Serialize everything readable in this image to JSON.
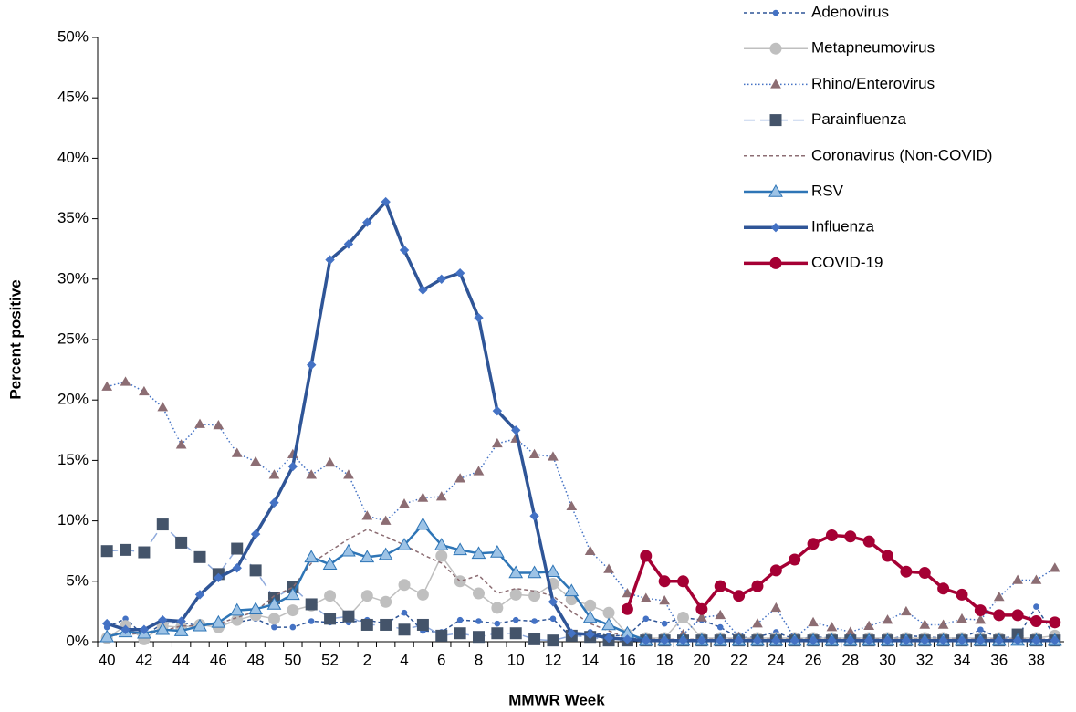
{
  "chart_data": {
    "type": "line",
    "x_label": "MMWR Week",
    "y_label": "Percent positive",
    "categories": [
      "40",
      null,
      "42",
      null,
      "44",
      null,
      "46",
      null,
      "48",
      null,
      "50",
      null,
      "52",
      null,
      "2",
      null,
      "4",
      null,
      "6",
      null,
      "8",
      null,
      "10",
      null,
      "12",
      null,
      "14",
      null,
      "16",
      null,
      "18",
      null,
      "20",
      null,
      "22",
      null,
      "24",
      null,
      "26",
      null,
      "28",
      null,
      "30",
      null,
      "32",
      null,
      "34",
      null,
      "36",
      null,
      "38",
      null
    ],
    "ylim": [
      0,
      50
    ],
    "yticks": [
      {
        "value": 0,
        "label": "0%"
      },
      {
        "value": 5,
        "label": "5%"
      },
      {
        "value": 10,
        "label": "10%"
      },
      {
        "value": 15,
        "label": "15%"
      },
      {
        "value": 20,
        "label": "20%"
      },
      {
        "value": 25,
        "label": "25%"
      },
      {
        "value": 30,
        "label": "30%"
      },
      {
        "value": 35,
        "label": "35%"
      },
      {
        "value": 40,
        "label": "40%"
      },
      {
        "value": 45,
        "label": "45%"
      },
      {
        "value": 50,
        "label": "50%"
      }
    ],
    "legend": "top-right",
    "series": [
      {
        "name": "Adenovirus",
        "color": "#2f5597",
        "line_style": "dashed",
        "marker": "circle",
        "marker_color": "#4472c4",
        "values": [
          1.2,
          1.9,
          0.5,
          1.5,
          1.6,
          1.3,
          1.5,
          1.6,
          1.9,
          1.2,
          1.2,
          1.7,
          1.6,
          1.6,
          1.8,
          1.5,
          2.4,
          0.9,
          0.8,
          1.8,
          1.7,
          1.5,
          1.8,
          1.7,
          1.9,
          0.3,
          0.8,
          0.5,
          0.5,
          1.9,
          1.5,
          2.0,
          1.8,
          1.2,
          0.3,
          0.4,
          0.8,
          0.2,
          0.4,
          0.3,
          0.3,
          0.3,
          0.2,
          0.5,
          0.4,
          0.3,
          0.3,
          1.0,
          0.3,
          0.4,
          2.9,
          0.4
        ]
      },
      {
        "name": "Metapneumovirus",
        "color": "#bfbfbf",
        "line_style": "solid",
        "marker": "circle",
        "marker_color": "#bfbfbf",
        "values": [
          0.3,
          1.3,
          0.2,
          1.3,
          1.2,
          1.4,
          1.2,
          1.8,
          2.2,
          1.9,
          2.6,
          3.0,
          3.8,
          2.1,
          3.8,
          3.3,
          4.7,
          3.9,
          7.1,
          5.0,
          4.0,
          2.8,
          3.9,
          3.8,
          4.8,
          3.5,
          3.0,
          2.4,
          0.6,
          0.3,
          0.3,
          2.0,
          0.3,
          0.3,
          0.3,
          0.3,
          0.3,
          0.3,
          0.3,
          0.3,
          0.3,
          0.3,
          0.3,
          0.3,
          0.3,
          0.3,
          0.3,
          0.3,
          0.3,
          0.3,
          0.3,
          0.5
        ]
      },
      {
        "name": "Rhino/Enterovirus",
        "color": "#4472c4",
        "line_style": "dotted",
        "marker": "triangle",
        "marker_color": "#8c6d73",
        "values": [
          21.1,
          21.5,
          20.7,
          19.4,
          16.3,
          18.0,
          17.9,
          15.6,
          14.9,
          13.8,
          15.5,
          13.8,
          14.8,
          13.8,
          10.4,
          10.0,
          11.4,
          11.9,
          12.0,
          13.5,
          14.1,
          16.4,
          16.8,
          15.5,
          15.3,
          11.2,
          7.5,
          6.0,
          4.0,
          3.6,
          3.4,
          0.6,
          2.0,
          2.2,
          0.4,
          1.5,
          2.8,
          0.3,
          1.6,
          1.2,
          0.8,
          1.3,
          1.8,
          2.5,
          1.4,
          1.4,
          1.9,
          1.8,
          3.7,
          5.1,
          5.1,
          6.1
        ]
      },
      {
        "name": "Parainfluenza",
        "color": "#8faadc",
        "line_style": "long-dashed",
        "marker": "square",
        "marker_color": "#44546a",
        "values": [
          7.5,
          7.6,
          7.4,
          9.7,
          8.2,
          7.0,
          5.6,
          7.7,
          5.9,
          3.6,
          4.5,
          3.1,
          1.9,
          2.1,
          1.4,
          1.4,
          1.0,
          1.4,
          0.5,
          0.7,
          0.4,
          0.7,
          0.7,
          0.2,
          0.1,
          0.5,
          0.4,
          0.1,
          0.1,
          0.1,
          0.1,
          0.1,
          0.1,
          0.1,
          0.1,
          0.1,
          0.1,
          0.1,
          0.1,
          0.1,
          0.1,
          0.1,
          0.1,
          0.1,
          0.1,
          0.1,
          0.1,
          0.1,
          0.1,
          0.6,
          0.1,
          0.1
        ]
      },
      {
        "name": "Coronavirus (Non-COVID)",
        "color": "#8c6d73",
        "line_style": "dashed",
        "marker": "none",
        "values": [
          0.5,
          0.6,
          0.7,
          0.9,
          1.3,
          1.3,
          1.5,
          2.0,
          2.5,
          3.8,
          4.5,
          6.5,
          7.5,
          8.5,
          9.3,
          8.7,
          8.0,
          7.2,
          6.5,
          5.0,
          5.5,
          4.0,
          4.4,
          4.2,
          3.8,
          2.5,
          1.5,
          0.9,
          0.3,
          0.2,
          0.2,
          0.2,
          0.2,
          0.2,
          0.2,
          0.2,
          0.2,
          0.2,
          0.2,
          0.2,
          0.2,
          0.2,
          0.2,
          0.2,
          0.2,
          0.2,
          0.2,
          0.2,
          0.2,
          0.2,
          0.2,
          0.2
        ]
      },
      {
        "name": "RSV",
        "color": "#2e75b6",
        "line_style": "solid",
        "marker": "triangle",
        "marker_color": "#9dc3e6",
        "values": [
          0.4,
          0.8,
          0.7,
          1.0,
          0.9,
          1.3,
          1.6,
          2.6,
          2.7,
          3.1,
          3.9,
          7.0,
          6.4,
          7.5,
          7.0,
          7.2,
          8.0,
          9.7,
          8.0,
          7.6,
          7.3,
          7.4,
          5.7,
          5.7,
          5.8,
          4.2,
          2.0,
          1.4,
          0.7,
          0.1,
          0.1,
          0.1,
          0.1,
          0.1,
          0.1,
          0.1,
          0.1,
          0.1,
          0.1,
          0.1,
          0.1,
          0.1,
          0.1,
          0.1,
          0.1,
          0.1,
          0.1,
          0.1,
          0.1,
          0.1,
          0.1,
          0.1
        ]
      },
      {
        "name": "Influenza",
        "color": "#2f5597",
        "line_style": "thick",
        "marker": "diamond",
        "marker_color": "#4472c4",
        "values": [
          1.5,
          1.0,
          1.0,
          1.8,
          1.7,
          3.9,
          5.3,
          6.1,
          8.9,
          11.5,
          14.5,
          22.9,
          31.6,
          32.9,
          34.7,
          36.4,
          32.4,
          29.1,
          30.0,
          30.5,
          26.8,
          19.1,
          17.5,
          10.4,
          3.3,
          0.7,
          0.6,
          0.3,
          0.2,
          0.1,
          0.1,
          0.1,
          0.1,
          0.1,
          0.1,
          0.1,
          0.1,
          0.1,
          0.1,
          0.1,
          0.1,
          0.1,
          0.1,
          0.1,
          0.1,
          0.1,
          0.1,
          0.1,
          0.1,
          0.1,
          0.1,
          0.1
        ]
      },
      {
        "name": "COVID-19",
        "color": "#a50034",
        "line_style": "thick",
        "marker": "circle",
        "marker_color": "#a50034",
        "values": [
          null,
          null,
          null,
          null,
          null,
          null,
          null,
          null,
          null,
          null,
          null,
          null,
          null,
          null,
          null,
          null,
          null,
          null,
          null,
          null,
          null,
          null,
          null,
          null,
          null,
          null,
          null,
          null,
          2.7,
          7.1,
          5.0,
          5.0,
          2.7,
          4.6,
          3.8,
          4.6,
          5.9,
          6.8,
          8.1,
          8.8,
          8.7,
          8.3,
          7.1,
          5.8,
          5.7,
          4.4,
          3.9,
          2.6,
          2.2,
          2.2,
          1.7,
          1.6
        ]
      }
    ]
  }
}
